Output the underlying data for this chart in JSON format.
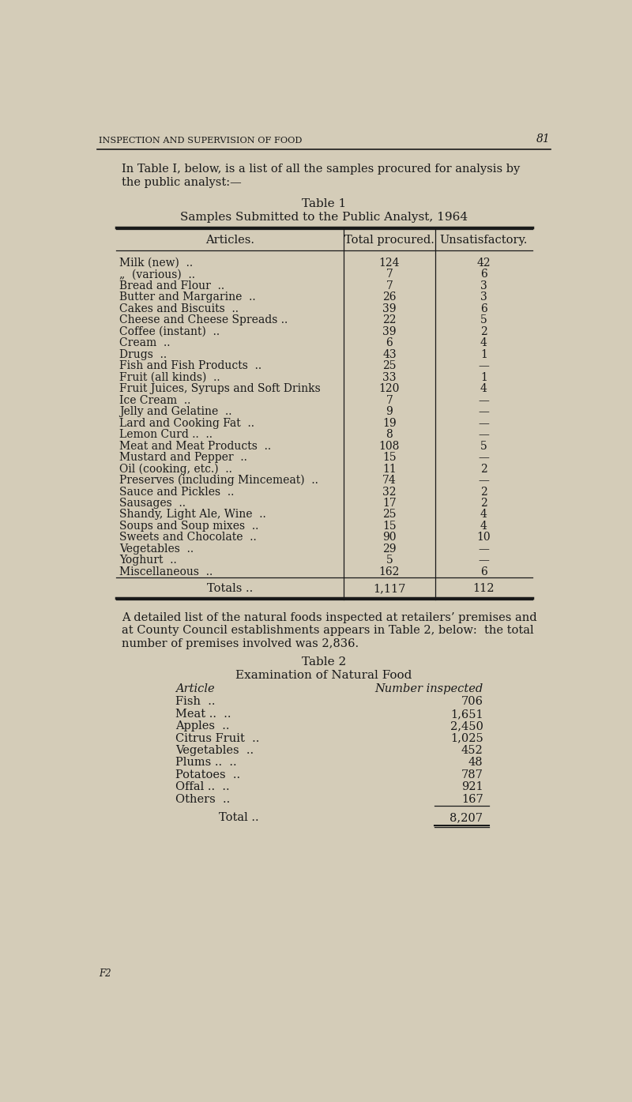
{
  "page_bg": "#d4ccb8",
  "text_color": "#1a1a1a",
  "header_text": "INSPECTION AND SUPERVISION OF FOOD",
  "page_number": "81",
  "intro_line1": "In Table I, below, is a list of all the samples procured for analysis by",
  "intro_line2": "the public analyst:—",
  "table1_title": "Table 1",
  "table1_subtitle": "Samples Submitted to the Public Analyst, 1964",
  "table1_col1": "Articles.",
  "table1_col2": "Total procured.",
  "table1_col3": "Unsatisfactory.",
  "table1_rows": [
    [
      "Milk (new)  ..",
      "124",
      "42"
    ],
    [
      "„  (various)  ..",
      "7",
      "6"
    ],
    [
      "Bread and Flour  ..",
      "7",
      "3"
    ],
    [
      "Butter and Margarine  ..",
      "26",
      "3"
    ],
    [
      "Cakes and Biscuits  ..",
      "39",
      "6"
    ],
    [
      "Cheese and Cheese Spreads ..",
      "22",
      "5"
    ],
    [
      "Coffee (instant)  ..",
      "39",
      "2"
    ],
    [
      "Cream  ..",
      "6",
      "4"
    ],
    [
      "Drugs  ..",
      "43",
      "1"
    ],
    [
      "Fish and Fish Products  ..",
      "25",
      "—"
    ],
    [
      "Fruit (all kinds)  ..",
      "33",
      "1"
    ],
    [
      "Fruit Juices, Syrups and Soft Drinks",
      "120",
      "4"
    ],
    [
      "Ice Cream  ..",
      "7",
      "—"
    ],
    [
      "Jelly and Gelatine  ..",
      "9",
      "—"
    ],
    [
      "Lard and Cooking Fat  ..",
      "19",
      "—"
    ],
    [
      "Lemon Curd ..  ..",
      "8",
      "—"
    ],
    [
      "Meat and Meat Products  ..",
      "108",
      "5"
    ],
    [
      "Mustard and Pepper  ..",
      "15",
      "—"
    ],
    [
      "Oil (cooking, etc.)  ..",
      "11",
      "2"
    ],
    [
      "Preserves (including Mincemeat)  ..",
      "74",
      "—"
    ],
    [
      "Sauce and Pickles  ..",
      "32",
      "2"
    ],
    [
      "Sausages  ..",
      "17",
      "2"
    ],
    [
      "Shandy, Light Ale, Wine  ..",
      "25",
      "4"
    ],
    [
      "Soups and Soup mixes  ..",
      "15",
      "4"
    ],
    [
      "Sweets and Chocolate  ..",
      "90",
      "10"
    ],
    [
      "Vegetables  ..",
      "29",
      "—"
    ],
    [
      "Yoghurt  ..",
      "5",
      "—"
    ],
    [
      "Miscellaneous  ..",
      "162",
      "6"
    ]
  ],
  "table1_totals_label": "Totals ..",
  "table1_total1": "1,117",
  "table1_total2": "112",
  "para2_line1": "A detailed list of the natural foods inspected at retailers’ premises and",
  "para2_line2": "at County Council establishments appears in Table 2, below:  the total",
  "para2_line3": "number of premises involved was 2,836.",
  "table2_title": "Table 2",
  "table2_subtitle": "Examination of Natural Food",
  "table2_col1": "Article",
  "table2_col2": "Number inspected",
  "table2_rows": [
    [
      "Fish  ..",
      "706"
    ],
    [
      "Meat ..  ..",
      "1,651"
    ],
    [
      "Apples  ..",
      "2,450"
    ],
    [
      "Citrus Fruit  ..",
      "1,025"
    ],
    [
      "Vegetables  ..",
      "452"
    ],
    [
      "Plums ..  ..",
      "48"
    ],
    [
      "Potatoes  ..",
      "787"
    ],
    [
      "Offal ..  ..",
      "921"
    ],
    [
      "Others  ..",
      "167"
    ]
  ],
  "table2_total_label": "Total ..",
  "table2_total": "8,207",
  "footer_text": "F2"
}
